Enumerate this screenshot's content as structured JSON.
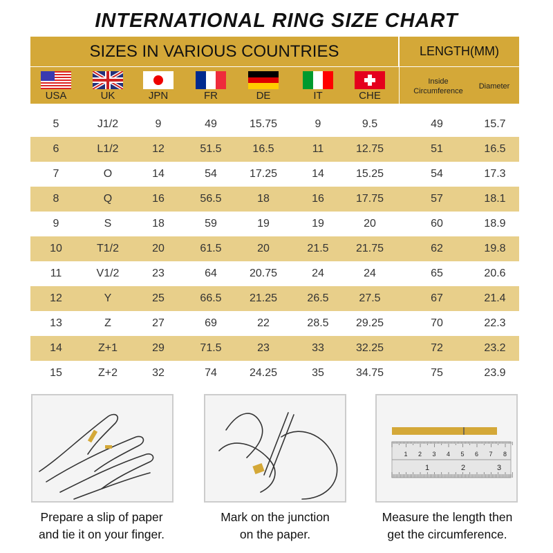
{
  "title": "INTERNATIONAL RING SIZE CHART",
  "header": {
    "countries_label": "SIZES IN VARIOUS COUNTRIES",
    "length_label": "LENGTH(MM)",
    "inside_label": "Inside Circumference",
    "diameter_label": "Diameter",
    "countries": [
      {
        "code": "USA",
        "icon": "usa-flag-icon"
      },
      {
        "code": "UK",
        "icon": "uk-flag-icon"
      },
      {
        "code": "JPN",
        "icon": "japan-flag-icon"
      },
      {
        "code": "FR",
        "icon": "france-flag-icon"
      },
      {
        "code": "DE",
        "icon": "germany-flag-icon"
      },
      {
        "code": "IT",
        "icon": "italy-flag-icon"
      },
      {
        "code": "CHE",
        "icon": "switzerland-flag-icon"
      }
    ]
  },
  "colors": {
    "header_gold": "#d4a838",
    "stripe": "#e8cf8a"
  },
  "rows": [
    [
      "5",
      "J1/2",
      "9",
      "49",
      "15.75",
      "9",
      "9.5",
      "49",
      "15.7"
    ],
    [
      "6",
      "L1/2",
      "12",
      "51.5",
      "16.5",
      "11",
      "12.75",
      "51",
      "16.5"
    ],
    [
      "7",
      "O",
      "14",
      "54",
      "17.25",
      "14",
      "15.25",
      "54",
      "17.3"
    ],
    [
      "8",
      "Q",
      "16",
      "56.5",
      "18",
      "16",
      "17.75",
      "57",
      "18.1"
    ],
    [
      "9",
      "S",
      "18",
      "59",
      "19",
      "19",
      "20",
      "60",
      "18.9"
    ],
    [
      "10",
      "T1/2",
      "20",
      "61.5",
      "20",
      "21.5",
      "21.75",
      "62",
      "19.8"
    ],
    [
      "11",
      "V1/2",
      "23",
      "64",
      "20.75",
      "24",
      "24",
      "65",
      "20.6"
    ],
    [
      "12",
      "Y",
      "25",
      "66.5",
      "21.25",
      "26.5",
      "27.5",
      "67",
      "21.4"
    ],
    [
      "13",
      "Z",
      "27",
      "69",
      "22",
      "28.5",
      "29.25",
      "70",
      "22.3"
    ],
    [
      "14",
      "Z+1",
      "29",
      "71.5",
      "23",
      "33",
      "32.25",
      "72",
      "23.2"
    ],
    [
      "15",
      "Z+2",
      "32",
      "74",
      "24.25",
      "35",
      "34.75",
      "75",
      "23.9"
    ]
  ],
  "steps": [
    {
      "line1": "Prepare a slip of paper",
      "line2": "and tie it on your finger.",
      "icon": "hand-with-paper-icon"
    },
    {
      "line1": "Mark on the junction",
      "line2": "on the paper.",
      "icon": "marking-paper-icon"
    },
    {
      "line1": "Measure the length then",
      "line2": "get the circumference.",
      "icon": "ruler-measure-icon"
    }
  ],
  "ruler": {
    "cm_labels": [
      "1",
      "2",
      "3",
      "4",
      "5",
      "6",
      "7",
      "8"
    ],
    "inch_labels": [
      "1",
      "2",
      "3"
    ]
  }
}
